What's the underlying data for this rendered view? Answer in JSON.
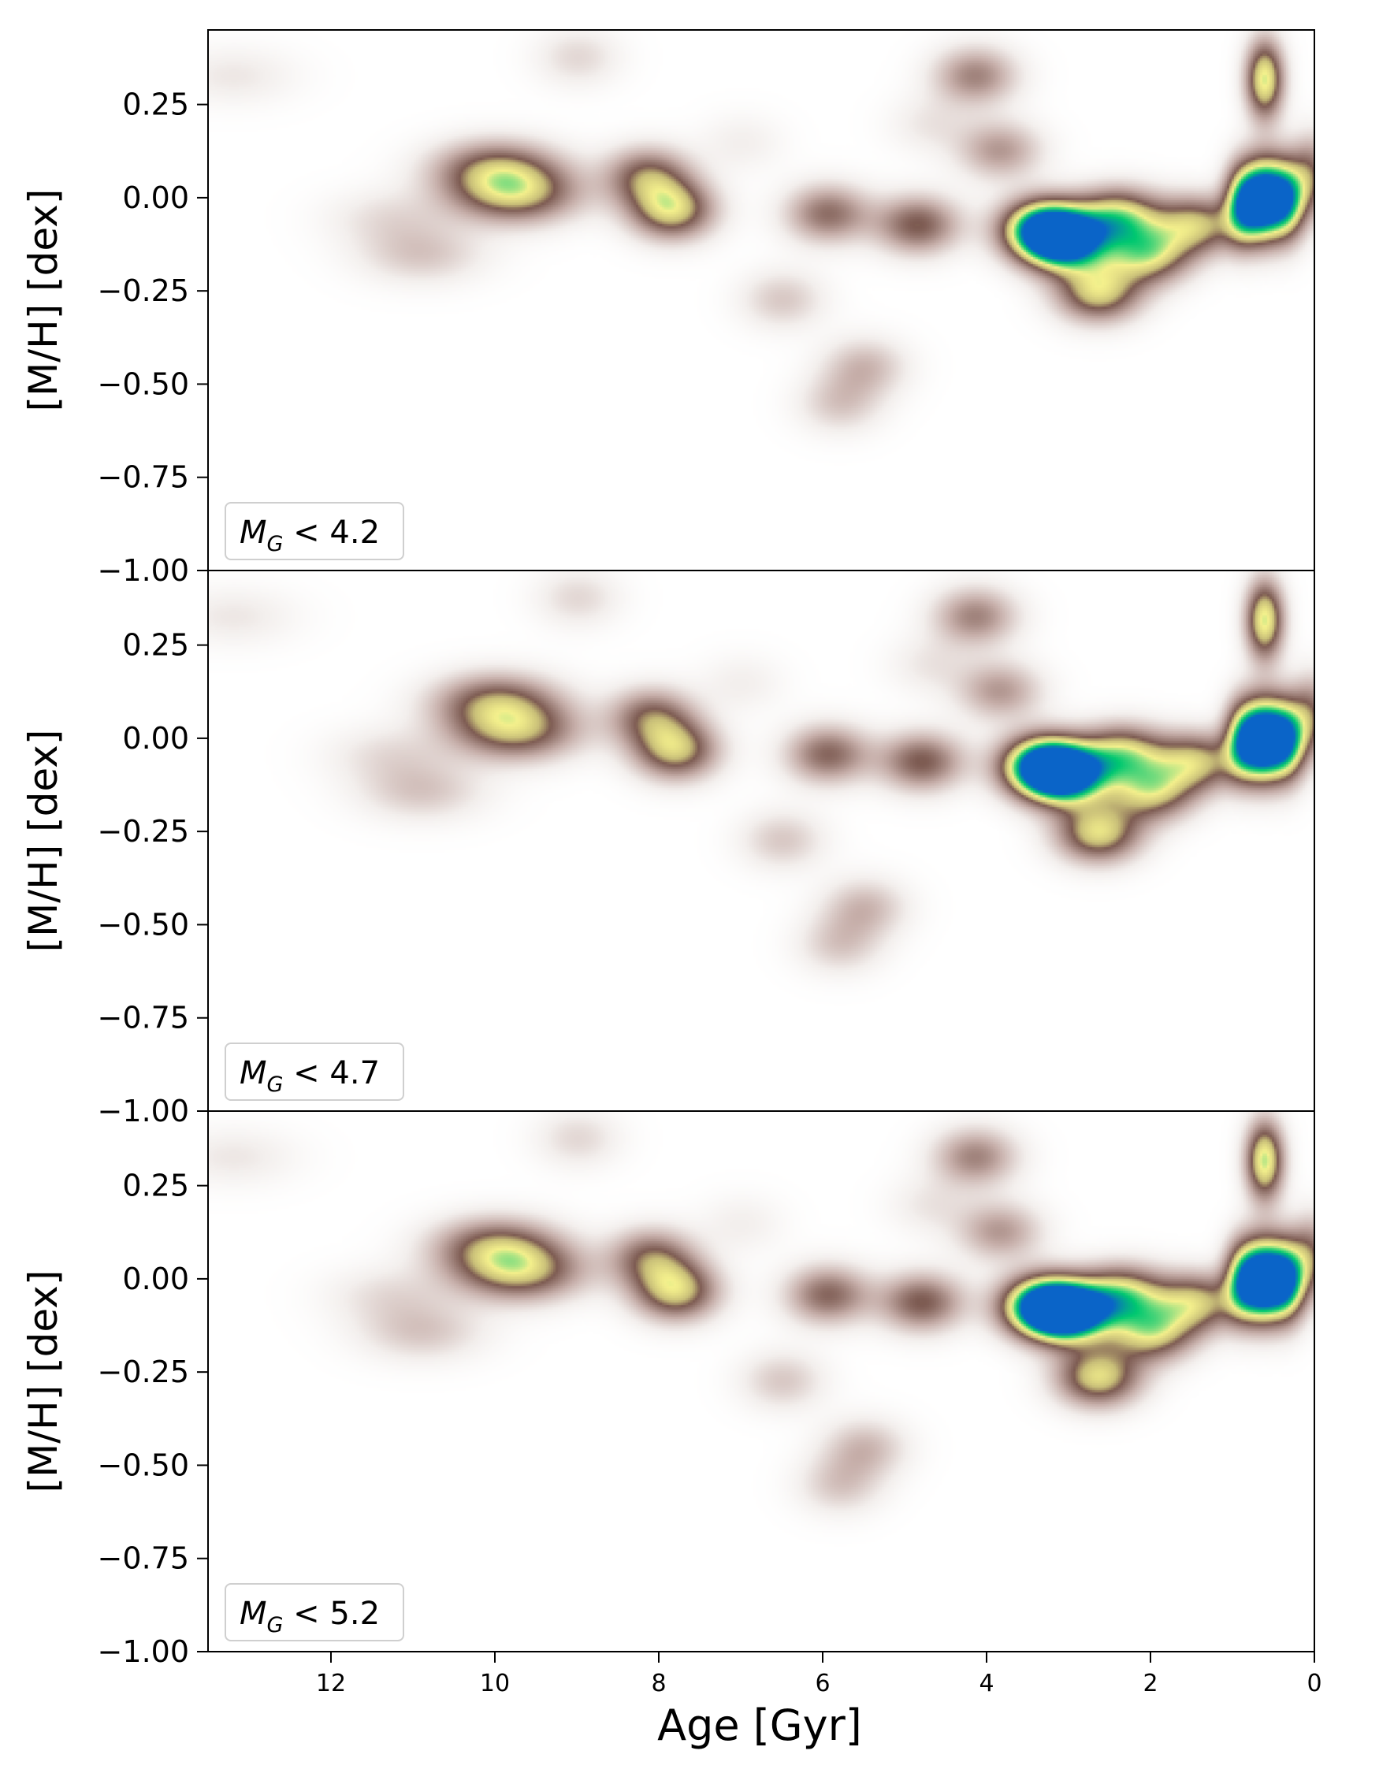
{
  "chart_data": {
    "type": "heatmap",
    "shared_x_axis": {
      "label": "Age [Gyr]",
      "range": [
        13.5,
        0
      ],
      "ticks": [
        12,
        10,
        8,
        6,
        4,
        2,
        0
      ],
      "tick_labels": [
        "12",
        "10",
        "8",
        "6",
        "4",
        "2",
        "0"
      ],
      "direction": "reversed"
    },
    "colormap": "terrain_r",
    "colormap_stops": [
      "#ffffff",
      "#f3efed",
      "#c6aea9",
      "#7d5b52",
      "#c8be78",
      "#f4f08c",
      "#00c870",
      "#0a64c8"
    ],
    "panels": [
      {
        "annotation": "4.2",
        "ylabel": "[M/H] [dex]",
        "ylim": [
          -1.0,
          0.45
        ],
        "yticks": [
          0.25,
          0.0,
          -0.25,
          -0.5,
          -0.75,
          -1.0
        ],
        "ytick_labels": [
          "0.25",
          "0.00",
          "−0.25",
          "−0.50",
          "−0.75",
          "−1.00"
        ],
        "blobs": [
          {
            "age": 3.3,
            "mh": -0.08,
            "density": 1.0
          },
          {
            "age": 3.05,
            "mh": -0.12,
            "density": 0.85
          },
          {
            "age": 0.62,
            "mh": 0.0,
            "density": 1.0
          },
          {
            "age": 0.88,
            "mh": -0.01,
            "density": 0.85
          },
          {
            "age": 0.35,
            "mh": 0.0,
            "density": 0.85
          },
          {
            "age": 2.4,
            "mh": -0.05,
            "density": 0.65
          },
          {
            "age": 2.05,
            "mh": -0.15,
            "density": 0.6
          },
          {
            "age": 2.65,
            "mh": -0.25,
            "density": 0.6
          },
          {
            "age": 1.45,
            "mh": -0.07,
            "density": 0.55
          },
          {
            "age": 0.62,
            "mh": 0.32,
            "density": 0.7
          },
          {
            "age": 7.85,
            "mh": -0.03,
            "density": 0.6
          },
          {
            "age": 8.15,
            "mh": 0.06,
            "density": 0.45
          },
          {
            "age": 9.75,
            "mh": 0.01,
            "density": 0.5
          },
          {
            "age": 10.0,
            "mh": 0.08,
            "density": 0.45
          },
          {
            "age": 4.85,
            "mh": -0.07,
            "density": 0.45
          },
          {
            "age": 5.95,
            "mh": -0.04,
            "density": 0.4
          },
          {
            "age": 4.15,
            "mh": 0.33,
            "density": 0.35
          },
          {
            "age": 3.85,
            "mh": 0.13,
            "density": 0.3
          },
          {
            "age": 0.05,
            "mh": 0.06,
            "density": 0.4
          },
          {
            "age": 5.5,
            "mh": -0.45,
            "density": 0.22
          },
          {
            "age": 5.8,
            "mh": -0.55,
            "density": 0.18
          },
          {
            "age": 6.5,
            "mh": -0.27,
            "density": 0.18
          },
          {
            "age": 10.9,
            "mh": -0.15,
            "density": 0.18
          },
          {
            "age": 11.3,
            "mh": -0.05,
            "density": 0.12
          },
          {
            "age": 9.0,
            "mh": 0.38,
            "density": 0.14
          },
          {
            "age": 13.2,
            "mh": 0.33,
            "density": 0.1
          },
          {
            "age": 7.0,
            "mh": 0.15,
            "density": 0.08
          },
          {
            "age": 4.7,
            "mh": 0.2,
            "density": 0.1
          }
        ]
      },
      {
        "annotation": "4.7",
        "ylabel": "[M/H] [dex]",
        "ylim": [
          -1.0,
          0.45
        ],
        "yticks": [
          0.25,
          0.0,
          -0.25,
          -0.5,
          -0.75,
          -1.0
        ],
        "ytick_labels": [
          "0.25",
          "0.00",
          "−0.25",
          "−0.50",
          "−0.75",
          "−1.00"
        ],
        "blobs": [
          {
            "age": 3.3,
            "mh": -0.07,
            "density": 1.05
          },
          {
            "age": 3.05,
            "mh": -0.1,
            "density": 0.85
          },
          {
            "age": 0.62,
            "mh": 0.0,
            "density": 1.05
          },
          {
            "age": 0.88,
            "mh": 0.0,
            "density": 0.8
          },
          {
            "age": 0.35,
            "mh": 0.0,
            "density": 0.9
          },
          {
            "age": 2.35,
            "mh": -0.04,
            "density": 0.6
          },
          {
            "age": 2.0,
            "mh": -0.14,
            "density": 0.55
          },
          {
            "age": 2.65,
            "mh": -0.25,
            "density": 0.62
          },
          {
            "age": 1.45,
            "mh": -0.06,
            "density": 0.55
          },
          {
            "age": 0.62,
            "mh": 0.32,
            "density": 0.7
          },
          {
            "age": 7.8,
            "mh": -0.03,
            "density": 0.55
          },
          {
            "age": 8.1,
            "mh": 0.06,
            "density": 0.42
          },
          {
            "age": 9.75,
            "mh": 0.02,
            "density": 0.48
          },
          {
            "age": 10.0,
            "mh": 0.1,
            "density": 0.45
          },
          {
            "age": 4.8,
            "mh": -0.06,
            "density": 0.45
          },
          {
            "age": 5.95,
            "mh": -0.04,
            "density": 0.42
          },
          {
            "age": 4.15,
            "mh": 0.33,
            "density": 0.35
          },
          {
            "age": 3.85,
            "mh": 0.13,
            "density": 0.3
          },
          {
            "age": 0.05,
            "mh": 0.06,
            "density": 0.4
          },
          {
            "age": 5.5,
            "mh": -0.45,
            "density": 0.22
          },
          {
            "age": 5.8,
            "mh": -0.55,
            "density": 0.18
          },
          {
            "age": 6.5,
            "mh": -0.27,
            "density": 0.18
          },
          {
            "age": 10.9,
            "mh": -0.14,
            "density": 0.18
          },
          {
            "age": 11.3,
            "mh": -0.04,
            "density": 0.12
          },
          {
            "age": 9.0,
            "mh": 0.38,
            "density": 0.14
          },
          {
            "age": 13.2,
            "mh": 0.33,
            "density": 0.1
          },
          {
            "age": 7.0,
            "mh": 0.15,
            "density": 0.08
          },
          {
            "age": 4.7,
            "mh": 0.2,
            "density": 0.1
          }
        ]
      },
      {
        "annotation": "5.2",
        "ylabel": "[M/H] [dex]",
        "ylim": [
          -1.0,
          0.45
        ],
        "yticks": [
          0.25,
          0.0,
          -0.25,
          -0.5,
          -0.75,
          -1.0
        ],
        "ytick_labels": [
          "0.25",
          "0.00",
          "−0.25",
          "−0.50",
          "−0.75",
          "−1.00"
        ],
        "blobs": [
          {
            "age": 3.3,
            "mh": -0.07,
            "density": 1.05
          },
          {
            "age": 3.0,
            "mh": -0.09,
            "density": 0.95
          },
          {
            "age": 0.62,
            "mh": 0.0,
            "density": 1.05
          },
          {
            "age": 0.88,
            "mh": 0.0,
            "density": 0.8
          },
          {
            "age": 0.35,
            "mh": 0.0,
            "density": 0.95
          },
          {
            "age": 2.35,
            "mh": -0.04,
            "density": 0.62
          },
          {
            "age": 2.0,
            "mh": -0.14,
            "density": 0.58
          },
          {
            "age": 2.65,
            "mh": -0.26,
            "density": 0.62
          },
          {
            "age": 1.45,
            "mh": -0.06,
            "density": 0.55
          },
          {
            "age": 0.62,
            "mh": 0.32,
            "density": 0.72
          },
          {
            "age": 7.8,
            "mh": -0.03,
            "density": 0.58
          },
          {
            "age": 8.1,
            "mh": 0.06,
            "density": 0.42
          },
          {
            "age": 9.7,
            "mh": 0.02,
            "density": 0.5
          },
          {
            "age": 10.0,
            "mh": 0.09,
            "density": 0.45
          },
          {
            "age": 4.8,
            "mh": -0.06,
            "density": 0.45
          },
          {
            "age": 5.95,
            "mh": -0.04,
            "density": 0.42
          },
          {
            "age": 4.15,
            "mh": 0.33,
            "density": 0.35
          },
          {
            "age": 3.85,
            "mh": 0.13,
            "density": 0.3
          },
          {
            "age": 0.05,
            "mh": 0.06,
            "density": 0.4
          },
          {
            "age": 5.5,
            "mh": -0.45,
            "density": 0.22
          },
          {
            "age": 5.8,
            "mh": -0.55,
            "density": 0.18
          },
          {
            "age": 6.5,
            "mh": -0.27,
            "density": 0.18
          },
          {
            "age": 10.9,
            "mh": -0.14,
            "density": 0.18
          },
          {
            "age": 11.3,
            "mh": -0.04,
            "density": 0.12
          },
          {
            "age": 9.0,
            "mh": 0.38,
            "density": 0.14
          },
          {
            "age": 13.2,
            "mh": 0.33,
            "density": 0.1
          },
          {
            "age": 7.0,
            "mh": 0.15,
            "density": 0.08
          },
          {
            "age": 4.7,
            "mh": 0.2,
            "density": 0.1
          }
        ]
      }
    ]
  }
}
